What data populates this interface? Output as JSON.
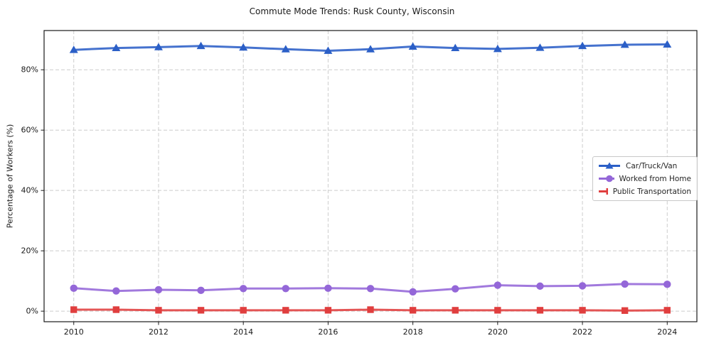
{
  "chart_data": {
    "type": "line",
    "title": "Commute Mode Trends: Rusk County, Wisconsin",
    "xlabel": "",
    "ylabel": "Percentage of Workers (%)",
    "x": [
      2010,
      2011,
      2012,
      2013,
      2014,
      2015,
      2016,
      2017,
      2018,
      2019,
      2020,
      2021,
      2022,
      2023,
      2024
    ],
    "xticks": [
      2010,
      2012,
      2014,
      2016,
      2018,
      2020,
      2022,
      2024
    ],
    "xtick_labels": [
      "2010",
      "2012",
      "2014",
      "2016",
      "2018",
      "2020",
      "2022",
      "2024"
    ],
    "yticks": [
      0,
      20,
      40,
      60,
      80
    ],
    "ytick_labels": [
      "0%",
      "20%",
      "40%",
      "60%",
      "80%"
    ],
    "xlim": [
      2009.3,
      2024.7
    ],
    "ylim": [
      -3.5,
      93
    ],
    "grid": true,
    "grid_style": "dashed",
    "legend_position": "center-right",
    "series": [
      {
        "name": "Car/Truck/Van",
        "color": "#2b5fc7",
        "marker": "triangle",
        "values": [
          86.6,
          87.2,
          87.5,
          87.9,
          87.4,
          86.8,
          86.3,
          86.8,
          87.7,
          87.2,
          86.9,
          87.3,
          87.9,
          88.3,
          88.4
        ]
      },
      {
        "name": "Worked from Home",
        "color": "#9467d8",
        "marker": "circle",
        "values": [
          7.6,
          6.7,
          7.1,
          6.9,
          7.5,
          7.5,
          7.6,
          7.5,
          6.4,
          7.4,
          8.6,
          8.3,
          8.4,
          9.0,
          8.9
        ]
      },
      {
        "name": "Public Transportation",
        "color": "#e03e3e",
        "marker": "square",
        "values": [
          0.5,
          0.5,
          0.3,
          0.3,
          0.3,
          0.3,
          0.3,
          0.5,
          0.3,
          0.3,
          0.3,
          0.3,
          0.3,
          0.2,
          0.3
        ]
      }
    ],
    "colors": {
      "grid": "#cccccc",
      "spine": "#1a1a1a",
      "text": "#1a1a1a"
    }
  }
}
